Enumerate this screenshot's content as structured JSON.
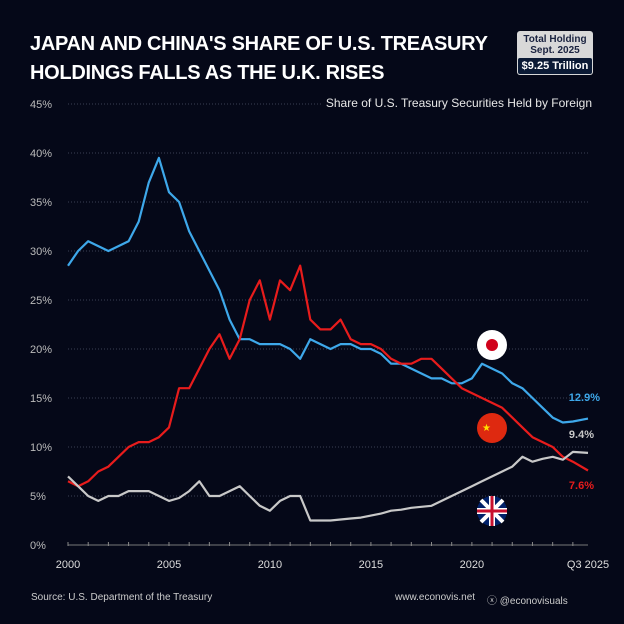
{
  "title_lines": [
    "JAPAN AND CHINA'S SHARE OF U.S. TREASURY",
    "HOLDINGS FALLS AS THE U.K. RISES"
  ],
  "badge": {
    "line1": "Total Holding",
    "line2": "Sept. 2025",
    "value": "$9.25 Trillion"
  },
  "footer": {
    "source": "Source: U.S. Department of the Treasury",
    "website": "www.econovis.net",
    "social": "@econovisuals"
  },
  "colors": {
    "background": "#050818",
    "japan": "#3ea8ea",
    "china": "#e81c1c",
    "uk": "#c8c8c8"
  },
  "chart_data": {
    "type": "line",
    "title": "JAPAN AND CHINA'S SHARE OF U.S. TREASURY HOLDINGS FALLS AS THE U.K. RISES",
    "subtitle": "Share of U.S. Treasury Securities Held by Foreign",
    "xlim": [
      2000,
      2025.75
    ],
    "ylim": [
      0,
      45
    ],
    "x_ticks": [
      {
        "v": 2000,
        "label": "2000"
      },
      {
        "v": 2005,
        "label": "2005"
      },
      {
        "v": 2010,
        "label": "2010"
      },
      {
        "v": 2015,
        "label": "2015"
      },
      {
        "v": 2020,
        "label": "2020"
      },
      {
        "v": 2025.75,
        "label": "Q3 2025"
      }
    ],
    "y_ticks": [
      {
        "v": 0,
        "label": "0%"
      },
      {
        "v": 5,
        "label": "5%"
      },
      {
        "v": 10,
        "label": "10%"
      },
      {
        "v": 15,
        "label": "15%"
      },
      {
        "v": 20,
        "label": "20%"
      },
      {
        "v": 25,
        "label": "25%"
      },
      {
        "v": 30,
        "label": "30%"
      },
      {
        "v": 35,
        "label": "35%"
      },
      {
        "v": 40,
        "label": "40%"
      },
      {
        "v": 45,
        "label": "45%"
      }
    ],
    "grid": true,
    "series": [
      {
        "key": "japan",
        "end_label": "12.9%",
        "color": "#3ea8ea",
        "points": [
          [
            2000,
            28.5
          ],
          [
            2000.5,
            30
          ],
          [
            2001,
            31
          ],
          [
            2001.5,
            30.5
          ],
          [
            2002,
            30
          ],
          [
            2002.5,
            30.5
          ],
          [
            2003,
            31
          ],
          [
            2003.5,
            33
          ],
          [
            2004,
            37
          ],
          [
            2004.5,
            39.5
          ],
          [
            2005,
            36
          ],
          [
            2005.5,
            35
          ],
          [
            2006,
            32
          ],
          [
            2006.5,
            30
          ],
          [
            2007,
            28
          ],
          [
            2007.5,
            26
          ],
          [
            2008,
            23
          ],
          [
            2008.5,
            21
          ],
          [
            2009,
            21
          ],
          [
            2009.5,
            20.5
          ],
          [
            2010,
            20.5
          ],
          [
            2010.5,
            20.5
          ],
          [
            2011,
            20
          ],
          [
            2011.5,
            19
          ],
          [
            2012,
            21
          ],
          [
            2012.5,
            20.5
          ],
          [
            2013,
            20
          ],
          [
            2013.5,
            20.5
          ],
          [
            2014,
            20.5
          ],
          [
            2014.5,
            20
          ],
          [
            2015,
            20
          ],
          [
            2015.5,
            19.5
          ],
          [
            2016,
            18.5
          ],
          [
            2016.5,
            18.5
          ],
          [
            2017,
            18
          ],
          [
            2017.5,
            17.5
          ],
          [
            2018,
            17
          ],
          [
            2018.5,
            17
          ],
          [
            2019,
            16.5
          ],
          [
            2019.5,
            16.5
          ],
          [
            2020,
            17
          ],
          [
            2020.5,
            18.5
          ],
          [
            2021,
            18
          ],
          [
            2021.5,
            17.5
          ],
          [
            2022,
            16.5
          ],
          [
            2022.5,
            16
          ],
          [
            2023,
            15
          ],
          [
            2023.5,
            14
          ],
          [
            2024,
            13
          ],
          [
            2024.5,
            12.5
          ],
          [
            2025,
            12.6
          ],
          [
            2025.75,
            12.9
          ]
        ]
      },
      {
        "key": "china",
        "end_label": "7.6%",
        "color": "#e81c1c",
        "points": [
          [
            2000,
            6.5
          ],
          [
            2000.5,
            6
          ],
          [
            2001,
            6.5
          ],
          [
            2001.5,
            7.5
          ],
          [
            2002,
            8
          ],
          [
            2002.5,
            9
          ],
          [
            2003,
            10
          ],
          [
            2003.5,
            10.5
          ],
          [
            2004,
            10.5
          ],
          [
            2004.5,
            11
          ],
          [
            2005,
            12
          ],
          [
            2005.5,
            16
          ],
          [
            2006,
            16
          ],
          [
            2006.5,
            18
          ],
          [
            2007,
            20
          ],
          [
            2007.5,
            21.5
          ],
          [
            2008,
            19
          ],
          [
            2008.5,
            21
          ],
          [
            2009,
            25
          ],
          [
            2009.5,
            27
          ],
          [
            2010,
            23
          ],
          [
            2010.5,
            27
          ],
          [
            2011,
            26
          ],
          [
            2011.5,
            28.5
          ],
          [
            2012,
            23
          ],
          [
            2012.5,
            22
          ],
          [
            2013,
            22
          ],
          [
            2013.5,
            23
          ],
          [
            2014,
            21
          ],
          [
            2014.5,
            20.5
          ],
          [
            2015,
            20.5
          ],
          [
            2015.5,
            20
          ],
          [
            2016,
            19
          ],
          [
            2016.5,
            18.5
          ],
          [
            2017,
            18.5
          ],
          [
            2017.5,
            19
          ],
          [
            2018,
            19
          ],
          [
            2018.5,
            18
          ],
          [
            2019,
            17
          ],
          [
            2019.5,
            16
          ],
          [
            2020,
            15.5
          ],
          [
            2020.5,
            15
          ],
          [
            2021,
            14.5
          ],
          [
            2021.5,
            14
          ],
          [
            2022,
            13
          ],
          [
            2022.5,
            12
          ],
          [
            2023,
            11
          ],
          [
            2023.5,
            10.5
          ],
          [
            2024,
            10
          ],
          [
            2024.5,
            9
          ],
          [
            2025,
            8.5
          ],
          [
            2025.75,
            7.6
          ]
        ]
      },
      {
        "key": "uk",
        "end_label": "9.4%",
        "color": "#c8c8c8",
        "points": [
          [
            2000,
            7
          ],
          [
            2000.5,
            6
          ],
          [
            2001,
            5
          ],
          [
            2001.5,
            4.5
          ],
          [
            2002,
            5
          ],
          [
            2002.5,
            5
          ],
          [
            2003,
            5.5
          ],
          [
            2003.5,
            5.5
          ],
          [
            2004,
            5.5
          ],
          [
            2004.5,
            5
          ],
          [
            2005,
            4.5
          ],
          [
            2005.5,
            4.8
          ],
          [
            2006,
            5.5
          ],
          [
            2006.5,
            6.5
          ],
          [
            2007,
            5
          ],
          [
            2007.5,
            5
          ],
          [
            2008,
            5.5
          ],
          [
            2008.5,
            6
          ],
          [
            2009,
            5
          ],
          [
            2009.5,
            4
          ],
          [
            2010,
            3.5
          ],
          [
            2010.5,
            4.5
          ],
          [
            2011,
            5
          ],
          [
            2011.5,
            5
          ],
          [
            2012,
            2.5
          ],
          [
            2012.5,
            2.5
          ],
          [
            2013,
            2.5
          ],
          [
            2013.5,
            2.6
          ],
          [
            2014,
            2.7
          ],
          [
            2014.5,
            2.8
          ],
          [
            2015,
            3
          ],
          [
            2015.5,
            3.2
          ],
          [
            2016,
            3.5
          ],
          [
            2016.5,
            3.6
          ],
          [
            2017,
            3.8
          ],
          [
            2017.5,
            3.9
          ],
          [
            2018,
            4
          ],
          [
            2018.5,
            4.5
          ],
          [
            2019,
            5
          ],
          [
            2019.5,
            5.5
          ],
          [
            2020,
            6
          ],
          [
            2020.5,
            6.5
          ],
          [
            2021,
            7
          ],
          [
            2021.5,
            7.5
          ],
          [
            2022,
            8
          ],
          [
            2022.5,
            9
          ],
          [
            2023,
            8.5
          ],
          [
            2023.5,
            8.8
          ],
          [
            2024,
            9
          ],
          [
            2024.5,
            8.7
          ],
          [
            2025,
            9.5
          ],
          [
            2025.75,
            9.4
          ]
        ]
      }
    ]
  }
}
